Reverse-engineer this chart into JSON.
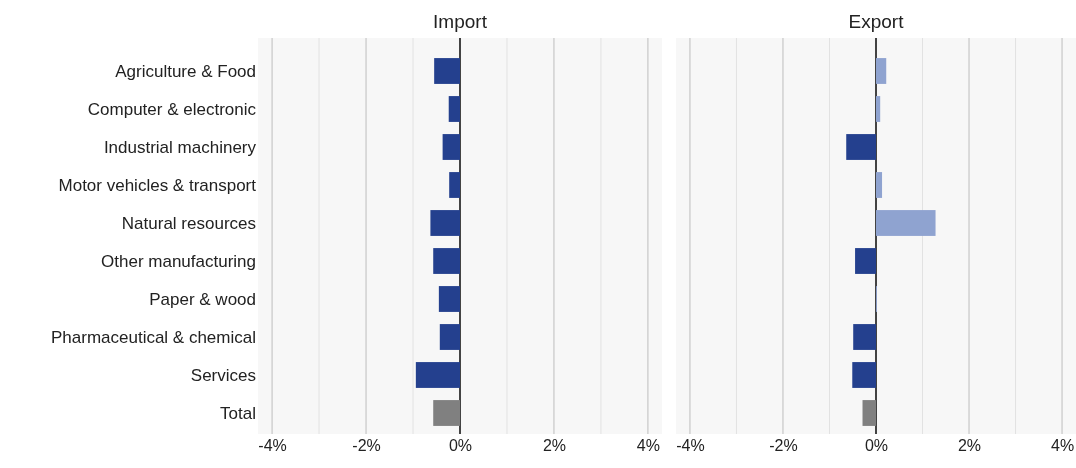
{
  "chart_data": [
    {
      "type": "bar",
      "title": "Import",
      "orientation": "horizontal",
      "categories": [
        "Agriculture & Food",
        "Computer & electronic",
        "Industrial machinery",
        "Motor vehicles & transport",
        "Natural resources",
        "Other manufacturing",
        "Paper & wood",
        "Pharmaceutical & chemical",
        "Services",
        "Total"
      ],
      "values": [
        -0.55,
        -0.24,
        -0.37,
        -0.23,
        -0.63,
        -0.57,
        -0.45,
        -0.43,
        -0.94,
        -0.57
      ],
      "colors": [
        "#24408e",
        "#24408e",
        "#24408e",
        "#24408e",
        "#24408e",
        "#24408e",
        "#24408e",
        "#24408e",
        "#24408e",
        "#808080"
      ],
      "xlim": [
        -4.3,
        4.3
      ],
      "xticks": [
        {
          "value": -4,
          "label": "-4%"
        },
        {
          "value": -3,
          "label": null
        },
        {
          "value": -2,
          "label": "-2%"
        },
        {
          "value": -1,
          "label": null
        },
        {
          "value": 0,
          "label": "0%"
        },
        {
          "value": 1,
          "label": null
        },
        {
          "value": 2,
          "label": "2%"
        },
        {
          "value": 3,
          "label": null
        },
        {
          "value": 4,
          "label": "4%"
        }
      ],
      "grid": "x"
    },
    {
      "type": "bar",
      "title": "Export",
      "orientation": "horizontal",
      "categories": [
        null,
        null,
        null,
        null,
        null,
        null,
        null,
        null,
        null,
        null
      ],
      "values": [
        0.22,
        0.09,
        -0.64,
        0.13,
        1.28,
        -0.45,
        0.02,
        -0.49,
        -0.51,
        -0.29
      ],
      "colors": [
        "#8fa3d0",
        "#8fa3d0",
        "#24408e",
        "#8fa3d0",
        "#8fa3d0",
        "#24408e",
        "#8fa3d0",
        "#24408e",
        "#24408e",
        "#808080"
      ],
      "xlim": [
        -4.3,
        4.3
      ],
      "xticks": [
        {
          "value": -4,
          "label": "-4%"
        },
        {
          "value": -3,
          "label": null
        },
        {
          "value": -2,
          "label": "-2%"
        },
        {
          "value": -1,
          "label": null
        },
        {
          "value": 0,
          "label": "0%"
        },
        {
          "value": 1,
          "label": null
        },
        {
          "value": 2,
          "label": "2%"
        },
        {
          "value": 3,
          "label": null
        },
        {
          "value": 4,
          "label": "4%"
        }
      ],
      "grid": "x",
      "tick_labels": "x"
    }
  ]
}
